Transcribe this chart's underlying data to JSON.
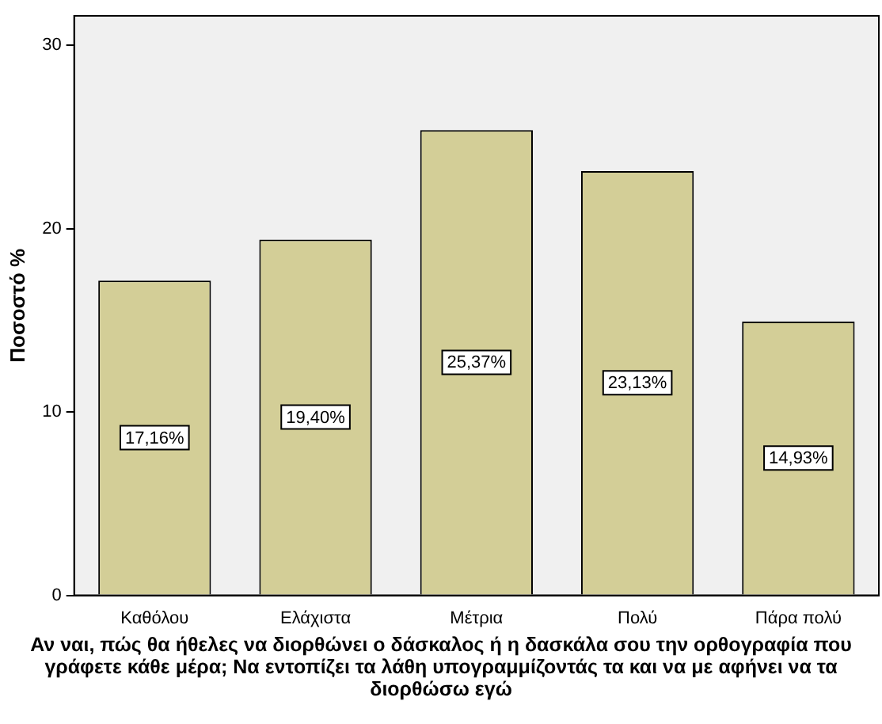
{
  "chart_data": {
    "type": "bar",
    "ylabel": "Ποσοστό %",
    "xlabel": "Αν ναι, πώς θα ήθελες να διορθώνει ο δάσκαλος ή η δασκάλα σου την ορθογραφία που γράφετε κάθε μέρα; Να εντοπίζει τα λάθη υπογραμμίζοντάς τα και να με αφήνει να τα διορθώσω εγώ",
    "categories": [
      "Καθόλου",
      "Ελάχιστα",
      "Μέτρια",
      "Πολύ",
      "Πάρα πολύ"
    ],
    "values": [
      17.16,
      19.4,
      25.37,
      23.13,
      14.93
    ],
    "value_labels": [
      "17,16%",
      "19,40%",
      "25,37%",
      "23,13%",
      "14,93%"
    ],
    "color": "#d3ce97",
    "ylim": [
      0,
      31.6
    ],
    "yticks": [
      0,
      10,
      20,
      30
    ],
    "grid": false,
    "legend": false
  }
}
